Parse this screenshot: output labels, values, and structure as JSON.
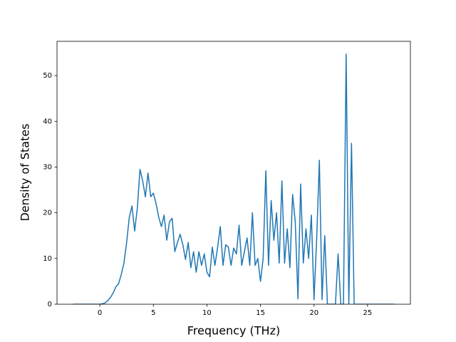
{
  "chart_data": {
    "type": "line",
    "xlabel": "Frequency (THz)",
    "ylabel": "Density of States",
    "xlim": [
      -4,
      29
    ],
    "ylim": [
      0,
      57.5
    ],
    "xticks": [
      0,
      5,
      10,
      15,
      20,
      25
    ],
    "yticks": [
      0,
      10,
      20,
      30,
      40,
      50
    ],
    "x": [
      -2.5,
      -2.25,
      -2,
      -1.75,
      -1.5,
      -1.25,
      -1,
      -0.75,
      -0.5,
      -0.25,
      0,
      0.25,
      0.5,
      0.75,
      1,
      1.25,
      1.5,
      1.75,
      2,
      2.25,
      2.5,
      2.75,
      3,
      3.25,
      3.5,
      3.75,
      4,
      4.25,
      4.5,
      4.75,
      5,
      5.25,
      5.5,
      5.75,
      6,
      6.25,
      6.5,
      6.75,
      7,
      7.25,
      7.5,
      7.75,
      8,
      8.25,
      8.5,
      8.75,
      9,
      9.25,
      9.5,
      9.75,
      10,
      10.25,
      10.5,
      10.75,
      11,
      11.25,
      11.5,
      11.75,
      12,
      12.25,
      12.5,
      12.75,
      13,
      13.25,
      13.5,
      13.75,
      14,
      14.25,
      14.5,
      14.75,
      15,
      15.25,
      15.5,
      15.75,
      16,
      16.25,
      16.5,
      16.75,
      17,
      17.25,
      17.5,
      17.75,
      18,
      18.25,
      18.5,
      18.75,
      19,
      19.25,
      19.5,
      19.75,
      20,
      20.25,
      20.5,
      20.75,
      21,
      21.25,
      21.5,
      21.75,
      22,
      22.25,
      22.5,
      22.75,
      23,
      23.25,
      23.5,
      23.75,
      24,
      24.25,
      24.5,
      24.75,
      25,
      25.25,
      25.5,
      25.75,
      26,
      26.25,
      26.5,
      26.75,
      27,
      27.25,
      27.5
    ],
    "series": [
      {
        "color": "#1f77b4",
        "values": [
          0,
          0,
          0,
          0,
          0,
          0,
          0,
          0,
          0,
          0,
          0,
          0.1,
          0.3,
          0.8,
          1.5,
          2.5,
          3.8,
          4.5,
          6.5,
          9,
          13.5,
          19,
          21.5,
          16,
          21,
          29.5,
          27,
          23.5,
          28.7,
          23.5,
          24.3,
          22,
          19,
          17,
          19.5,
          14,
          18,
          18.8,
          11.5,
          13.5,
          15.3,
          13,
          9.8,
          13.5,
          8,
          11.5,
          7,
          11.5,
          8.5,
          11,
          7,
          6,
          12.5,
          8.5,
          12.5,
          17,
          8.5,
          13,
          12.5,
          8.5,
          12.3,
          11,
          17.3,
          8.5,
          11.5,
          14.5,
          8.5,
          20,
          8.5,
          10,
          5,
          10,
          29.2,
          8.5,
          22.7,
          14,
          20,
          9,
          27,
          9,
          16.5,
          8,
          24,
          18,
          1.2,
          26.3,
          9,
          16.5,
          10,
          19.5,
          1,
          14.5,
          31.5,
          1,
          15,
          0,
          0,
          0,
          0,
          11,
          0,
          0,
          54.7,
          0,
          35.2,
          0,
          0,
          0,
          0,
          0,
          0,
          0,
          0,
          0,
          0,
          0,
          0,
          0,
          0,
          0,
          0
        ]
      }
    ]
  }
}
